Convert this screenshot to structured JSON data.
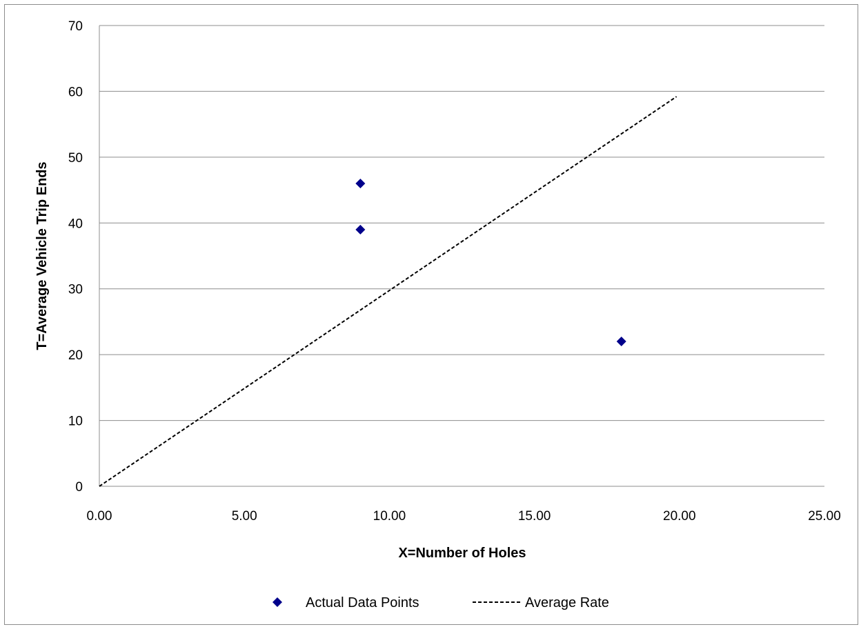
{
  "chart_data": {
    "type": "scatter",
    "title": "",
    "xlabel": "X=Number of Holes",
    "ylabel": "T=Average Vehicle Trip Ends",
    "xlim": [
      0,
      25
    ],
    "ylim": [
      0,
      70
    ],
    "x_ticks": [
      "0.00",
      "5.00",
      "10.00",
      "15.00",
      "20.00",
      "25.00"
    ],
    "y_ticks": [
      "0",
      "10",
      "20",
      "30",
      "40",
      "50",
      "60",
      "70"
    ],
    "grid": "horizontal",
    "legend_position": "bottom",
    "series": [
      {
        "name": "Actual Data Points",
        "kind": "scatter",
        "marker": "diamond",
        "color": "#00008B",
        "points": [
          {
            "x": 9,
            "y": 46
          },
          {
            "x": 9,
            "y": 39
          },
          {
            "x": 18,
            "y": 22
          }
        ]
      },
      {
        "name": "Average Rate",
        "kind": "line",
        "style": "dashed",
        "color": "#000000",
        "points": [
          {
            "x": 0,
            "y": 0
          },
          {
            "x": 19.9,
            "y": 59.2
          }
        ]
      }
    ],
    "legend": [
      "Actual Data Points",
      "Average Rate"
    ]
  }
}
